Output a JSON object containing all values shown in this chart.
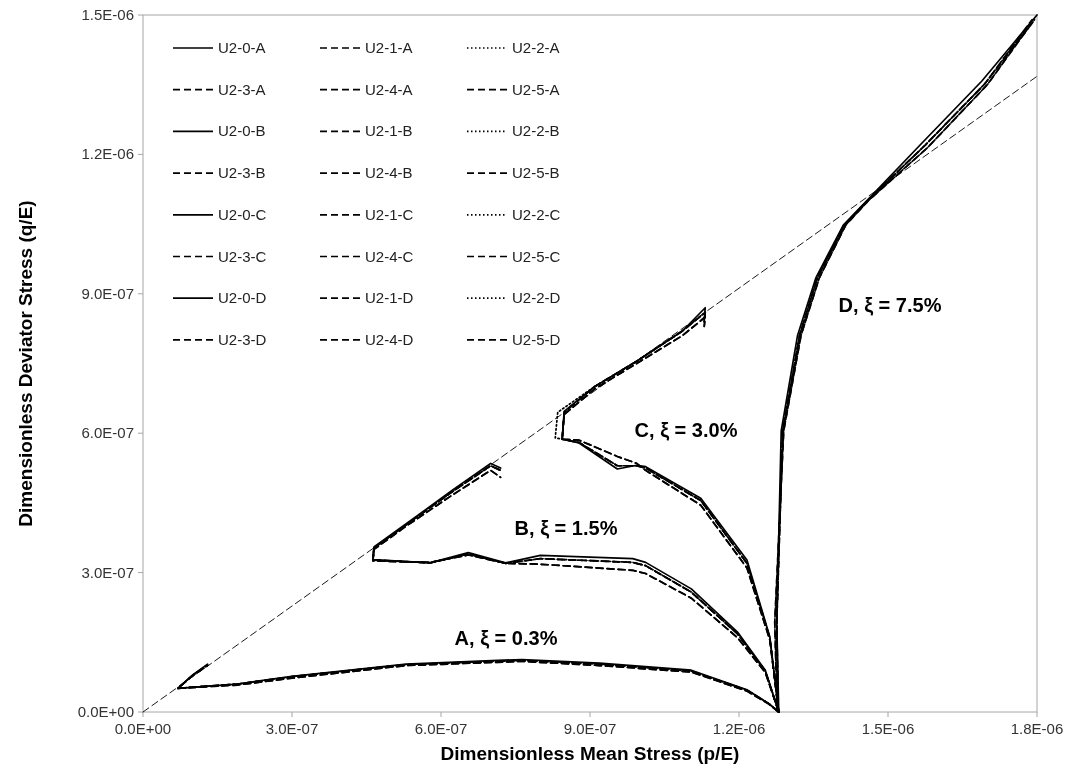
{
  "chart_data": {
    "type": "line",
    "xlabel": "Dimensionless Mean Stress (p/E)",
    "ylabel": "Dimensionless Deviator Stress (q/E)",
    "xlim": [
      0,
      1.8e-06
    ],
    "ylim": [
      0,
      1.5e-06
    ],
    "xticks": [
      {
        "value": 0,
        "label": "0.0E+00"
      },
      {
        "value": 3e-07,
        "label": "3.0E-07"
      },
      {
        "value": 6e-07,
        "label": "6.0E-07"
      },
      {
        "value": 9e-07,
        "label": "9.0E-07"
      },
      {
        "value": 1.2e-06,
        "label": "1.2E-06"
      },
      {
        "value": 1.5e-06,
        "label": "1.5E-06"
      },
      {
        "value": 1.8e-06,
        "label": "1.8E-06"
      }
    ],
    "yticks": [
      {
        "value": 0,
        "label": "0.0E+00"
      },
      {
        "value": 3e-07,
        "label": "3.0E-07"
      },
      {
        "value": 6e-07,
        "label": "6.0E-07"
      },
      {
        "value": 9e-07,
        "label": "9.0E-07"
      },
      {
        "value": 1.2e-06,
        "label": "1.2E-06"
      },
      {
        "value": 1.5e-06,
        "label": "1.5E-06"
      }
    ],
    "legend": "top left",
    "annotations": [
      "A, ξ = 0.3%",
      "B, ξ = 1.5%",
      "C, ξ = 3.0%",
      "D, ξ = 7.5%"
    ],
    "series": [
      {
        "name": "U2-0-A",
        "color": "#000000",
        "line_style": "solid",
        "x": [
          1.28e-06,
          1.26e-06,
          1.216e-06,
          1.104e-06,
          9.19e-07,
          7.63e-07,
          5.3e-07,
          3e-07,
          1.9e-07,
          7e-08,
          1e-07,
          1.3e-07
        ],
        "values": [
          0,
          1.8e-08,
          4.8e-08,
          9e-08,
          1.05e-07,
          1.13e-07,
          1.03e-07,
          7.7e-08,
          6e-08,
          5.1e-08,
          8e-08,
          1.03e-07
        ]
      },
      {
        "name": "U2-1-A",
        "color": "#000000",
        "line_style": "dashed",
        "x": [
          1.28e-06,
          1.26e-06,
          1.216e-06,
          1.104e-06,
          9.19e-07,
          7.63e-07,
          5.3e-07,
          3e-07,
          1.9e-07,
          7e-08,
          1e-07,
          1.3e-07
        ],
        "values": [
          0,
          1.8e-08,
          4.7e-08,
          8.8e-08,
          1.03e-07,
          1.11e-07,
          1.02e-07,
          7.6e-08,
          6e-08,
          5.1e-08,
          7.9e-08,
          1.01e-07
        ]
      },
      {
        "name": "U2-2-A",
        "color": "#000000",
        "line_style": "dotted",
        "x": [
          1.28e-06,
          1.26e-06,
          1.216e-06,
          1.104e-06,
          9.19e-07,
          7.63e-07,
          5.3e-07,
          3e-07,
          1.9e-07,
          7e-08,
          1e-07,
          1.3e-07
        ],
        "values": [
          0,
          1.8e-08,
          4.7e-08,
          8.8e-08,
          1.03e-07,
          1.11e-07,
          1.02e-07,
          7.6e-08,
          6e-08,
          5.1e-08,
          7.9e-08,
          1.01e-07
        ]
      },
      {
        "name": "U2-3-A",
        "color": "#000000",
        "line_style": "dashed",
        "x": [
          1.28e-06,
          1.26e-06,
          1.216e-06,
          1.104e-06,
          9.19e-07,
          7.63e-07,
          5.3e-07,
          3e-07,
          1.9e-07,
          7e-08,
          1e-07,
          1.3e-07
        ],
        "values": [
          0,
          1.7e-08,
          4.5e-08,
          8.6e-08,
          1e-07,
          1.09e-07,
          1e-07,
          7.3e-08,
          5.8e-08,
          5.1e-08,
          7.8e-08,
          1e-07
        ]
      },
      {
        "name": "U2-4-A",
        "color": "#000000",
        "line_style": "dashed",
        "x": [
          1.28e-06,
          1.26e-06,
          1.216e-06,
          1.104e-06,
          9.19e-07,
          7.63e-07,
          5.3e-07,
          3e-07,
          1.9e-07,
          7e-08,
          1e-07,
          1.3e-07
        ],
        "values": [
          0,
          1.7e-08,
          4.5e-08,
          8.6e-08,
          1e-07,
          1.09e-07,
          1e-07,
          7.3e-08,
          5.8e-08,
          5.1e-08,
          7.8e-08,
          1e-07
        ]
      },
      {
        "name": "U2-5-A",
        "color": "#000000",
        "line_style": "dashed",
        "x": [
          1.28e-06,
          1.26e-06,
          1.216e-06,
          1.104e-06,
          9.19e-07,
          7.63e-07,
          5.3e-07,
          3e-07,
          1.9e-07,
          7e-08,
          1e-07,
          1.3e-07
        ],
        "values": [
          0,
          1.8e-08,
          4.7e-08,
          8.8e-08,
          1.03e-07,
          1.11e-07,
          1.02e-07,
          7.6e-08,
          6e-08,
          5.1e-08,
          7.9e-08,
          1.01e-07
        ]
      },
      {
        "name": "U2-0-B",
        "color": "#000000",
        "line_style": "solid",
        "x": [
          1.28e-06,
          1.253e-06,
          1.197e-06,
          1.104e-06,
          1.012e-06,
          9.86e-07,
          8e-07,
          7.3e-07,
          6.55e-07,
          5.78e-07,
          4.63e-07,
          4.65e-07,
          5.3e-07,
          6.2e-07,
          7e-07,
          7.2e-07
        ],
        "values": [
          0,
          9e-08,
          1.72e-07,
          2.65e-07,
          3.22e-07,
          3.3e-07,
          3.37e-07,
          3.21e-07,
          3.43e-07,
          3.21e-07,
          3.28e-07,
          3.55e-07,
          4.05e-07,
          4.75e-07,
          5.35e-07,
          5.25e-07
        ]
      },
      {
        "name": "U2-1-B",
        "color": "#000000",
        "line_style": "dashed",
        "x": [
          1.28e-06,
          1.253e-06,
          1.197e-06,
          1.104e-06,
          1.012e-06,
          9.86e-07,
          8e-07,
          7.3e-07,
          6.55e-07,
          5.78e-07,
          4.63e-07,
          4.65e-07,
          5.3e-07,
          6.2e-07,
          7e-07,
          7.2e-07
        ],
        "values": [
          0,
          8.8e-08,
          1.68e-07,
          2.58e-07,
          3.15e-07,
          3.22e-07,
          3.3e-07,
          3.2e-07,
          3.4e-07,
          3.21e-07,
          3.27e-07,
          3.53e-07,
          4.03e-07,
          4.72e-07,
          5.3e-07,
          5.2e-07
        ]
      },
      {
        "name": "U2-2-B",
        "color": "#000000",
        "line_style": "dotted",
        "x": [
          1.28e-06,
          1.253e-06,
          1.197e-06,
          1.104e-06,
          1.012e-06,
          9.86e-07,
          8e-07,
          7.3e-07,
          6.55e-07,
          5.78e-07,
          4.63e-07,
          4.65e-07,
          5.3e-07,
          6.2e-07,
          7e-07,
          7.2e-07
        ],
        "values": [
          0,
          8.8e-08,
          1.68e-07,
          2.58e-07,
          3.15e-07,
          3.22e-07,
          3.3e-07,
          3.2e-07,
          3.4e-07,
          3.21e-07,
          3.27e-07,
          3.53e-07,
          4.03e-07,
          4.72e-07,
          5.3e-07,
          5.2e-07
        ]
      },
      {
        "name": "U2-3-B",
        "color": "#000000",
        "line_style": "dashed",
        "x": [
          1.28e-06,
          1.253e-06,
          1.197e-06,
          1.104e-06,
          1.012e-06,
          9.86e-07,
          8e-07,
          7.3e-07,
          6.55e-07,
          5.78e-07,
          4.63e-07,
          4.65e-07,
          5.3e-07,
          6.2e-07,
          7e-07,
          7.2e-07
        ],
        "values": [
          0,
          8.5e-08,
          1.6e-07,
          2.45e-07,
          2.98e-07,
          3.05e-07,
          3.18e-07,
          3.2e-07,
          3.38e-07,
          3.22e-07,
          3.25e-07,
          3.5e-07,
          4e-07,
          4.65e-07,
          5.2e-07,
          5.05e-07
        ]
      },
      {
        "name": "U2-4-B",
        "color": "#000000",
        "line_style": "dashed",
        "x": [
          1.28e-06,
          1.253e-06,
          1.197e-06,
          1.104e-06,
          1.012e-06,
          9.86e-07,
          8e-07,
          7.3e-07,
          6.55e-07,
          5.78e-07,
          4.63e-07,
          4.65e-07,
          5.3e-07,
          6.2e-07,
          7e-07,
          7.2e-07
        ],
        "values": [
          0,
          8.5e-08,
          1.6e-07,
          2.45e-07,
          2.98e-07,
          3.05e-07,
          3.18e-07,
          3.2e-07,
          3.38e-07,
          3.22e-07,
          3.25e-07,
          3.5e-07,
          4e-07,
          4.65e-07,
          5.2e-07,
          5.05e-07
        ]
      },
      {
        "name": "U2-5-B",
        "color": "#000000",
        "line_style": "dashed",
        "x": [
          1.28e-06,
          1.253e-06,
          1.197e-06,
          1.104e-06,
          1.012e-06,
          9.86e-07,
          8e-07,
          7.3e-07,
          6.55e-07,
          5.78e-07,
          4.63e-07,
          4.65e-07,
          5.3e-07,
          6.2e-07,
          7e-07,
          7.2e-07
        ],
        "values": [
          0,
          8.8e-08,
          1.68e-07,
          2.58e-07,
          3.15e-07,
          3.22e-07,
          3.3e-07,
          3.2e-07,
          3.4e-07,
          3.21e-07,
          3.27e-07,
          3.53e-07,
          4.03e-07,
          4.72e-07,
          5.3e-07,
          5.2e-07
        ]
      },
      {
        "name": "U2-0-C",
        "color": "#000000",
        "line_style": "solid",
        "x": [
          1.28e-06,
          1.262e-06,
          1.216e-06,
          1.123e-06,
          1.012e-06,
          9.94e-07,
          9.55e-07,
          8.78e-07,
          8.44e-07,
          8.48e-07,
          9.09e-07,
          9.94e-07,
          1.086e-06,
          1.132e-06,
          1.13e-06
        ],
        "values": [
          0,
          1.62e-07,
          3.27e-07,
          4.6e-07,
          5.28e-07,
          5.31e-07,
          5.23e-07,
          5.79e-07,
          5.87e-07,
          6.47e-07,
          7e-07,
          7.55e-07,
          8.2e-07,
          8.7e-07,
          8.44e-07
        ]
      },
      {
        "name": "U2-1-C",
        "color": "#000000",
        "line_style": "dashed",
        "x": [
          1.28e-06,
          1.262e-06,
          1.216e-06,
          1.123e-06,
          1.012e-06,
          9.94e-07,
          9.55e-07,
          8.78e-07,
          8.44e-07,
          8.48e-07,
          9.09e-07,
          9.94e-07,
          1.086e-06,
          1.132e-06,
          1.13e-06
        ],
        "values": [
          0,
          1.6e-07,
          3.2e-07,
          4.55e-07,
          5.25e-07,
          5.3e-07,
          5.3e-07,
          5.8e-07,
          5.87e-07,
          6.45e-07,
          7e-07,
          7.55e-07,
          8.2e-07,
          8.6e-07,
          8.4e-07
        ]
      },
      {
        "name": "U2-2-C",
        "color": "#000000",
        "line_style": "dotted",
        "x": [
          1.28e-06,
          1.262e-06,
          1.216e-06,
          1.123e-06,
          1.012e-06,
          9.94e-07,
          9.55e-07,
          8.78e-07,
          8.3e-07,
          8.35e-07,
          9.09e-07,
          9.94e-07,
          1.086e-06,
          1.132e-06,
          1.13e-06
        ],
        "values": [
          0,
          1.6e-07,
          3.2e-07,
          4.55e-07,
          5.25e-07,
          5.3e-07,
          5.3e-07,
          5.8e-07,
          5.9e-07,
          6.45e-07,
          7e-07,
          7.55e-07,
          8.2e-07,
          8.6e-07,
          8.4e-07
        ]
      },
      {
        "name": "U2-3-C",
        "color": "#000000",
        "line_style": "dashed",
        "x": [
          1.28e-06,
          1.262e-06,
          1.216e-06,
          1.123e-06,
          1.012e-06,
          9.94e-07,
          9.55e-07,
          8.78e-07,
          8.44e-07,
          8.48e-07,
          9.09e-07,
          9.94e-07,
          1.086e-06,
          1.132e-06,
          1.13e-06
        ],
        "values": [
          0,
          1.55e-07,
          3.1e-07,
          4.45e-07,
          5.2e-07,
          5.35e-07,
          5.5e-07,
          5.85e-07,
          5.87e-07,
          6.4e-07,
          6.95e-07,
          7.5e-07,
          8.1e-07,
          8.5e-07,
          8.3e-07
        ]
      },
      {
        "name": "U2-4-C",
        "color": "#000000",
        "line_style": "dashed",
        "x": [
          1.28e-06,
          1.262e-06,
          1.216e-06,
          1.123e-06,
          1.012e-06,
          9.94e-07,
          9.55e-07,
          8.78e-07,
          8.44e-07,
          8.48e-07,
          9.09e-07,
          9.94e-07,
          1.086e-06,
          1.132e-06,
          1.13e-06
        ],
        "values": [
          0,
          1.55e-07,
          3.1e-07,
          4.45e-07,
          5.2e-07,
          5.35e-07,
          5.5e-07,
          5.85e-07,
          5.87e-07,
          6.4e-07,
          6.95e-07,
          7.5e-07,
          8.1e-07,
          8.5e-07,
          8.3e-07
        ]
      },
      {
        "name": "U2-5-C",
        "color": "#000000",
        "line_style": "dashed",
        "x": [
          1.28e-06,
          1.262e-06,
          1.216e-06,
          1.123e-06,
          1.012e-06,
          9.94e-07,
          9.55e-07,
          8.78e-07,
          8.44e-07,
          8.48e-07,
          9.09e-07,
          9.94e-07,
          1.086e-06,
          1.132e-06,
          1.13e-06
        ],
        "values": [
          0,
          1.6e-07,
          3.2e-07,
          4.55e-07,
          5.25e-07,
          5.3e-07,
          5.3e-07,
          5.8e-07,
          5.87e-07,
          6.45e-07,
          7e-07,
          7.55e-07,
          8.2e-07,
          8.6e-07,
          8.4e-07
        ]
      },
      {
        "name": "U2-0-D",
        "color": "#000000",
        "line_style": "solid",
        "x": [
          1.28e-06,
          1.276e-06,
          1.285e-06,
          1.318e-06,
          1.355e-06,
          1.41e-06,
          1.457e-06,
          1.568e-06,
          1.689e-06,
          1.8e-06
        ],
        "values": [
          0,
          1.93e-07,
          6.05e-07,
          8.11e-07,
          9.35e-07,
          1.048e-06,
          1.1e-06,
          1.224e-06,
          1.358e-06,
          1.5e-06
        ]
      },
      {
        "name": "U2-1-D",
        "color": "#000000",
        "line_style": "dashed",
        "x": [
          1.278e-06,
          1.276e-06,
          1.288e-06,
          1.322e-06,
          1.358e-06,
          1.412e-06,
          1.458e-06,
          1.575e-06,
          1.695e-06,
          1.79e-06
        ],
        "values": [
          5e-09,
          1.93e-07,
          6.05e-07,
          8.11e-07,
          9.35e-07,
          1.048e-06,
          1.1e-06,
          1.22e-06,
          1.352e-06,
          1.49e-06
        ]
      },
      {
        "name": "U2-2-D",
        "color": "#000000",
        "line_style": "dotted",
        "x": [
          1.279e-06,
          1.276e-06,
          1.288e-06,
          1.322e-06,
          1.358e-06,
          1.412e-06,
          1.458e-06,
          1.575e-06,
          1.695e-06,
          1.785e-06
        ],
        "values": [
          1e-08,
          1.93e-07,
          6.05e-07,
          8.11e-07,
          9.35e-07,
          1.048e-06,
          1.1e-06,
          1.22e-06,
          1.352e-06,
          1.48e-06
        ]
      },
      {
        "name": "U2-3-D",
        "color": "#000000",
        "line_style": "dashed",
        "x": [
          1.277e-06,
          1.272e-06,
          1.29e-06,
          1.325e-06,
          1.362e-06,
          1.415e-06,
          1.46e-06,
          1.58e-06,
          1.7e-06,
          1.795e-06
        ],
        "values": [
          1.5e-08,
          1.93e-07,
          6.05e-07,
          8.11e-07,
          9.35e-07,
          1.048e-06,
          1.1e-06,
          1.215e-06,
          1.35e-06,
          1.49e-06
        ]
      },
      {
        "name": "U2-4-D",
        "color": "#000000",
        "line_style": "dashed",
        "x": [
          1.276e-06,
          1.272e-06,
          1.29e-06,
          1.325e-06,
          1.362e-06,
          1.415e-06,
          1.46e-06,
          1.58e-06,
          1.7e-06,
          1.78e-06
        ],
        "values": [
          2e-08,
          1.93e-07,
          6.05e-07,
          8.11e-07,
          9.35e-07,
          1.048e-06,
          1.1e-06,
          1.215e-06,
          1.35e-06,
          1.47e-06
        ]
      },
      {
        "name": "U2-5-D",
        "color": "#000000",
        "line_style": "dashed",
        "x": [
          1.279e-06,
          1.276e-06,
          1.288e-06,
          1.322e-06,
          1.358e-06,
          1.412e-06,
          1.458e-06,
          1.575e-06,
          1.695e-06,
          1.792e-06
        ],
        "values": [
          2.5e-08,
          1.93e-07,
          6.05e-07,
          8.11e-07,
          9.35e-07,
          1.048e-06,
          1.1e-06,
          1.22e-06,
          1.352e-06,
          1.485e-06
        ]
      },
      {
        "color": "#000000",
        "line_style": "dashed",
        "x": [
          0,
          1.8e-06
        ],
        "values": [
          0,
          1.368e-06
        ]
      }
    ]
  }
}
